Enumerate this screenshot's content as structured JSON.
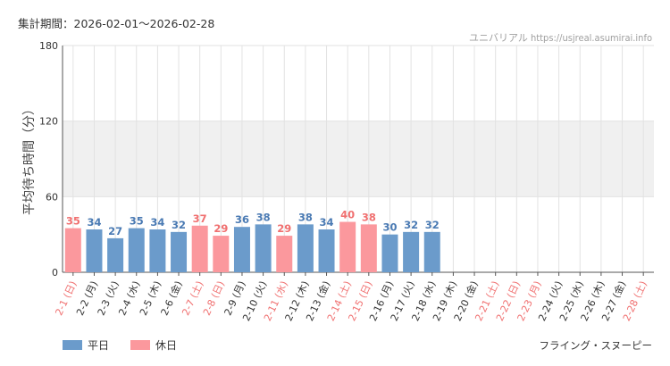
{
  "header": {
    "period": "集計期間：2026-02-01～2026-02-28",
    "source": "ユニバリアル  https://usjreal.asumirai.info"
  },
  "footer": {
    "attraction": "フライング・スヌーピー"
  },
  "legend": {
    "weekday_label": "平日",
    "holiday_label": "休日"
  },
  "colors": {
    "weekday": "#6b9bcb",
    "holiday": "#fb989d",
    "weekday_text": "#4a7ab3",
    "holiday_text": "#f07070",
    "band": "#f0f0f0",
    "grid": "#e2e2e2"
  },
  "chart_data": {
    "type": "bar",
    "ylabel": "平均待ち時間（分）",
    "ylim": [
      0,
      180
    ],
    "yticks": [
      0,
      60,
      120,
      180
    ],
    "band": [
      60,
      120
    ],
    "grid": true,
    "legend_position": "bottom-left",
    "categories": [
      "2-1 (日)",
      "2-2 (月)",
      "2-3 (火)",
      "2-4 (水)",
      "2-5 (木)",
      "2-6 (金)",
      "2-7 (土)",
      "2-8 (日)",
      "2-9 (月)",
      "2-10 (火)",
      "2-11 (水)",
      "2-12 (木)",
      "2-13 (金)",
      "2-14 (土)",
      "2-15 (日)",
      "2-16 (月)",
      "2-17 (火)",
      "2-18 (水)",
      "2-19 (木)",
      "2-20 (金)",
      "2-21 (土)",
      "2-22 (日)",
      "2-23 (月)",
      "2-24 (火)",
      "2-25 (水)",
      "2-26 (木)",
      "2-27 (金)",
      "2-28 (土)"
    ],
    "holiday": [
      true,
      false,
      false,
      false,
      false,
      false,
      true,
      true,
      false,
      false,
      true,
      false,
      false,
      true,
      true,
      false,
      false,
      false,
      false,
      false,
      true,
      true,
      true,
      false,
      false,
      false,
      false,
      true
    ],
    "values": [
      35,
      34,
      27,
      35,
      34,
      32,
      37,
      29,
      36,
      38,
      29,
      38,
      34,
      40,
      38,
      30,
      32,
      32,
      null,
      null,
      null,
      null,
      null,
      null,
      null,
      null,
      null,
      null
    ]
  }
}
